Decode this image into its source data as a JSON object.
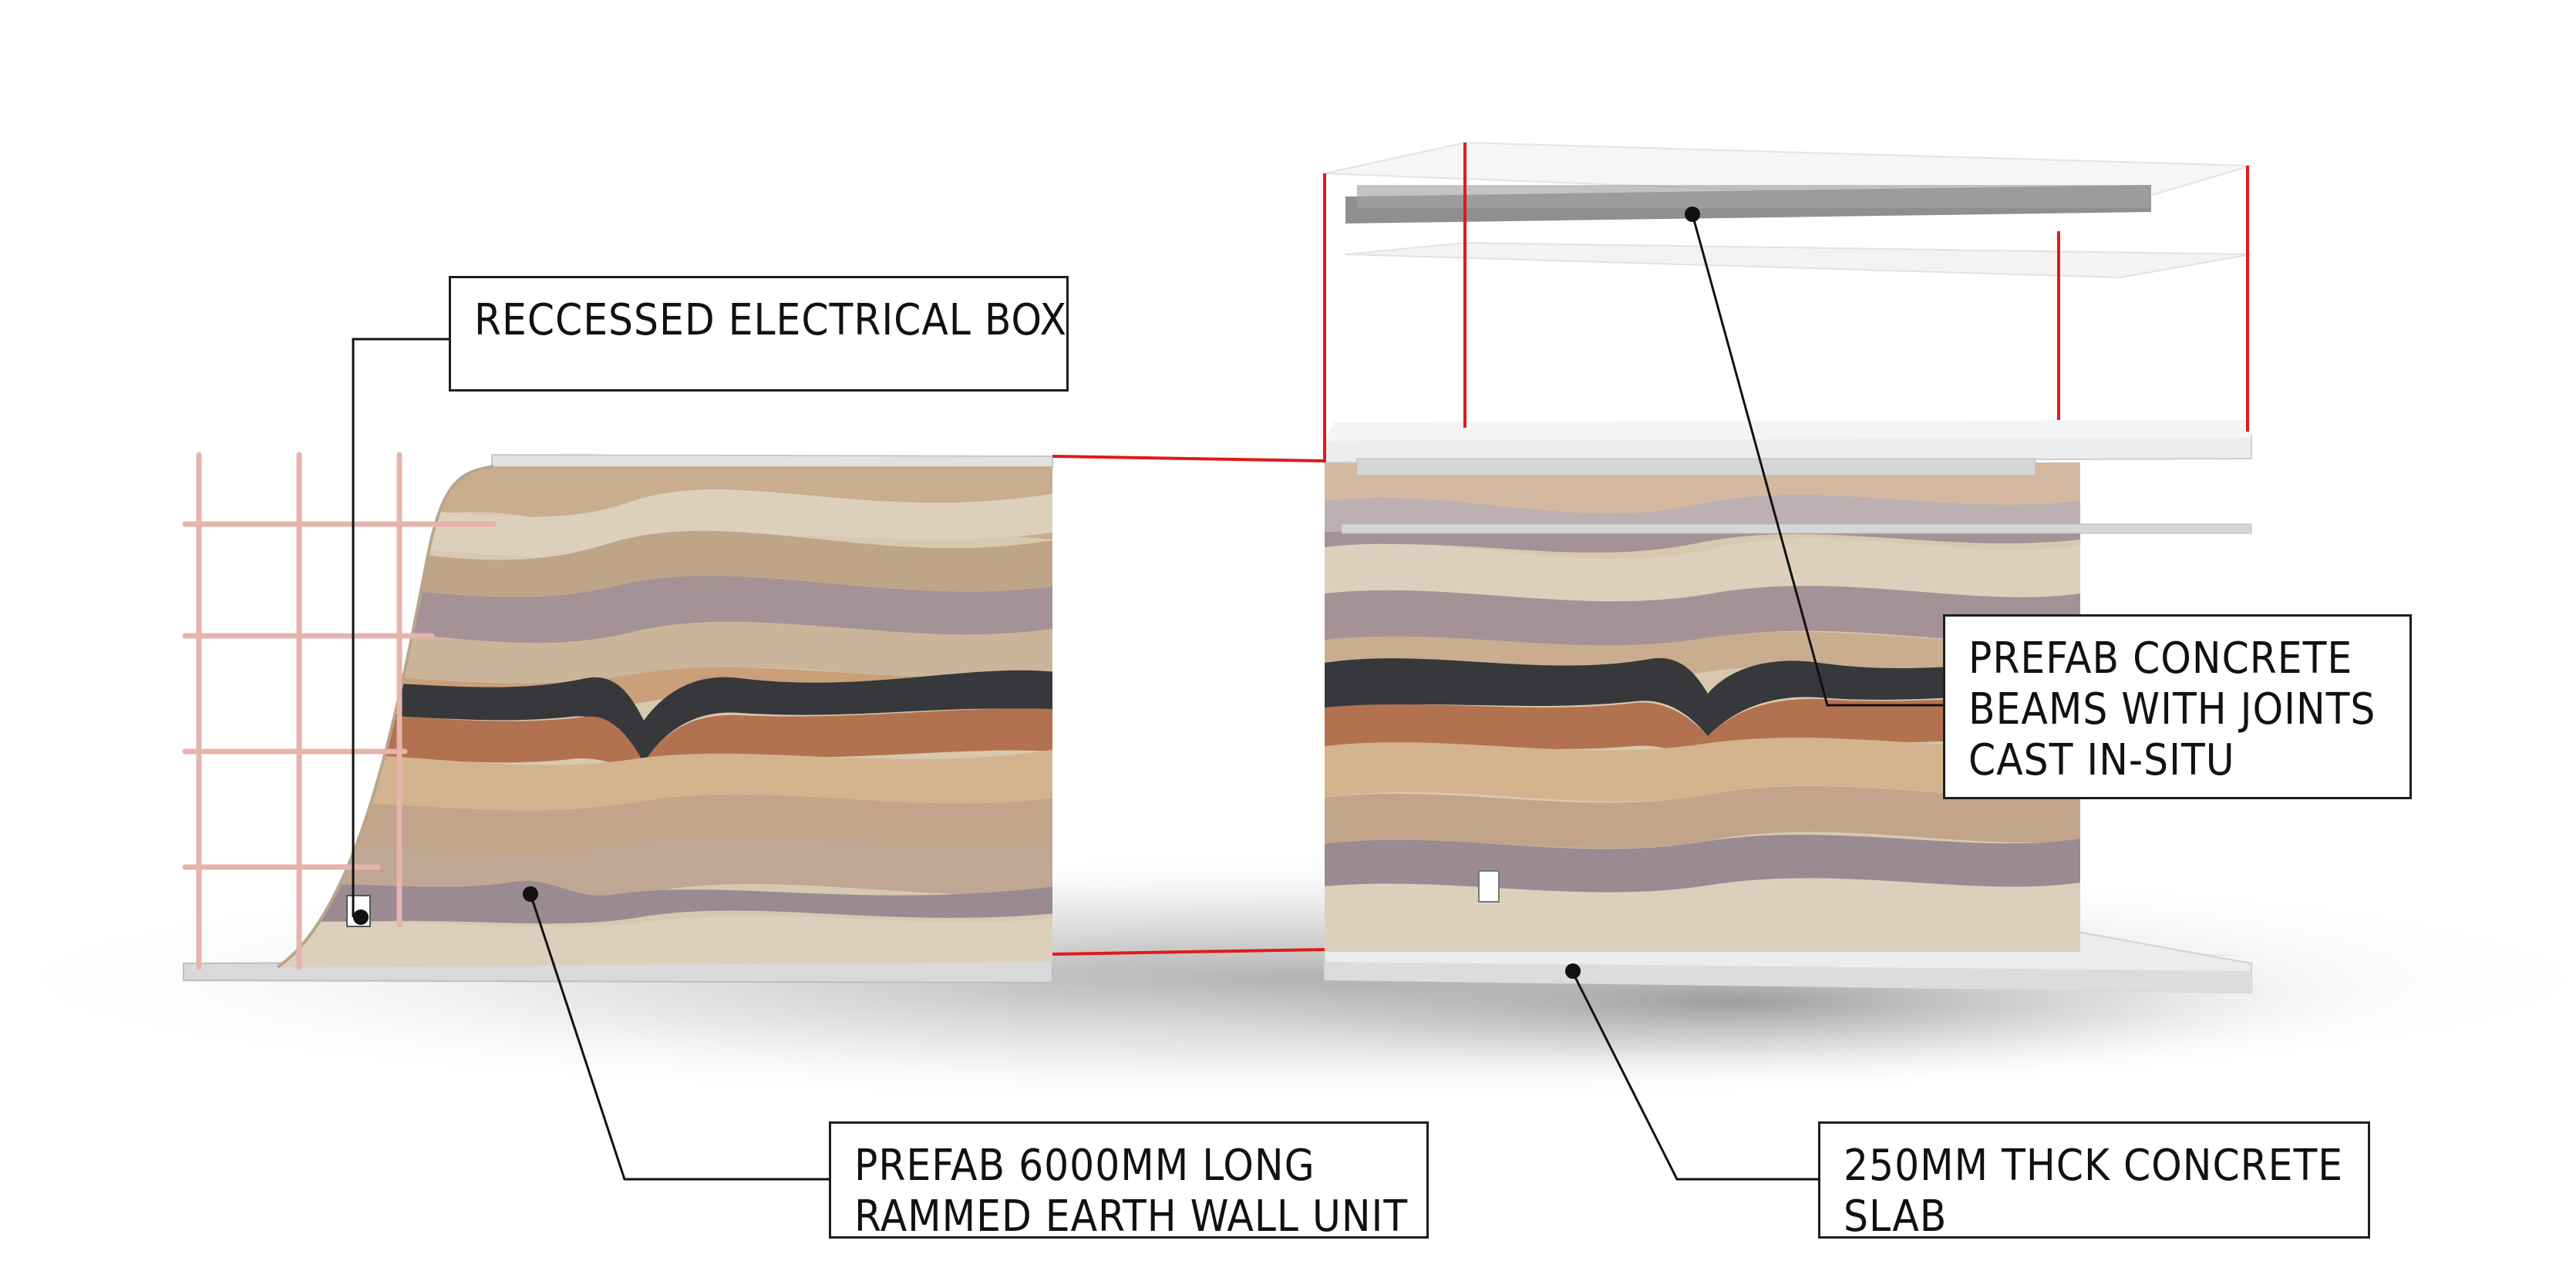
{
  "labels": {
    "electrical_box": [
      "RECCESSED ELECTRICAL BOX"
    ],
    "concrete_beams": [
      "PREFAB CONCRETE",
      "BEAMS  WITH JOINTS",
      "CAST IN-SITU"
    ],
    "wall_unit": [
      "PREFAB 6000MM LONG",
      "RAMMED EARTH WALL UNIT"
    ],
    "slab": [
      "250MM THCK CONCRETE",
      "SLAB"
    ]
  },
  "colors": {
    "leader": "#111111",
    "alignment_lines": "#e11a1a",
    "rebar": "#e7b3ad",
    "slab": "#e9e9e9",
    "earth_layers": [
      "#d8c8b0",
      "#c9ad8e",
      "#b89b84",
      "#a59296",
      "#cbb59a",
      "#c9a07a",
      "#36383b",
      "#b3724f",
      "#d4b48f",
      "#9a8a92",
      "#dcd0bd",
      "#bfa588"
    ]
  }
}
